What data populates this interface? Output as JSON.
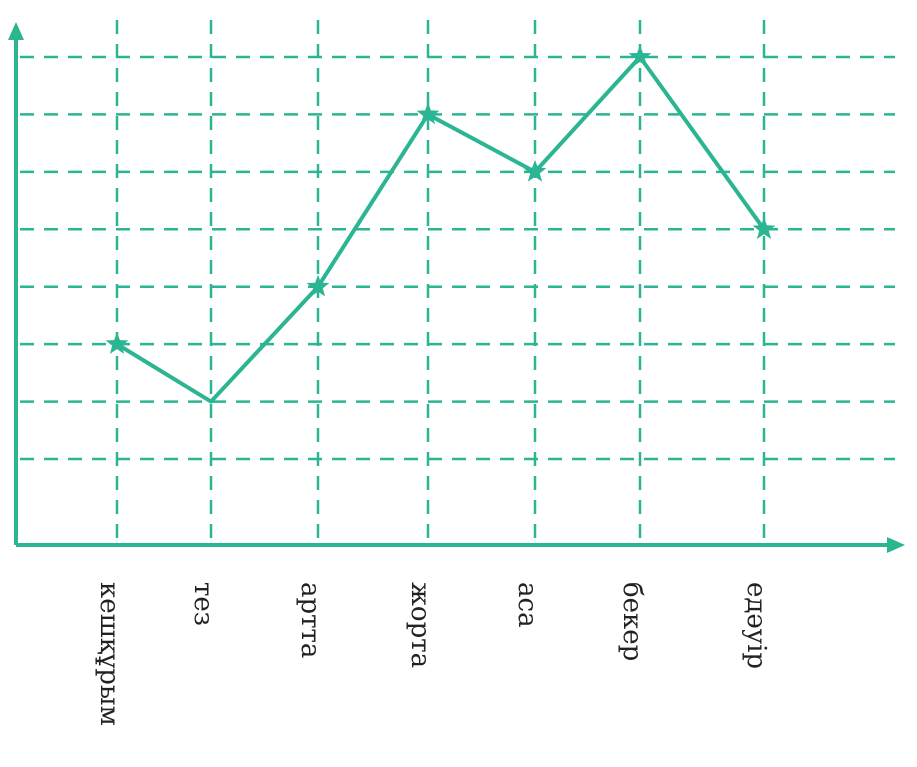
{
  "chart_data": {
    "type": "line",
    "title": "",
    "xlabel": "",
    "ylabel": "",
    "categories": [
      "кешқұрым",
      "тез",
      "артта",
      "жорта",
      "аса",
      "бекер",
      "едәуір"
    ],
    "values": [
      3,
      2,
      4,
      7,
      6,
      8,
      5
    ],
    "ylim": [
      1,
      8
    ],
    "grid": true,
    "marker": "star",
    "colors": {
      "line": "#2bb592",
      "axis": "#2bb592",
      "grid": "#2bb592",
      "text": "#222222"
    }
  }
}
